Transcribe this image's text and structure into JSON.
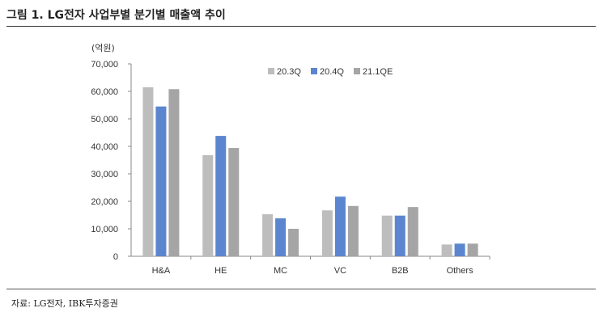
{
  "figure": {
    "title": "그림 1. LG전자 사업부별 분기별 매출액 추이",
    "source": "자료: LG전자, IBK투자증권"
  },
  "chart_data": {
    "type": "bar",
    "unit_label": "(억원)",
    "categories": [
      "H&A",
      "HE",
      "MC",
      "VC",
      "B2B",
      "Others"
    ],
    "series": [
      {
        "name": "20.3Q",
        "color": "#bdbdbd",
        "values": [
          61500,
          36800,
          15300,
          16700,
          14800,
          4300
        ]
      },
      {
        "name": "20.4Q",
        "color": "#5b86cf",
        "values": [
          54500,
          43800,
          13800,
          21700,
          14800,
          4600
        ]
      },
      {
        "name": "21.1QE",
        "color": "#a5a5a5",
        "values": [
          60800,
          39400,
          10000,
          18300,
          17900,
          4600
        ]
      }
    ],
    "ylim": [
      0,
      70000
    ],
    "yticks": [
      "0",
      "10,000",
      "20,000",
      "30,000",
      "40,000",
      "50,000",
      "60,000",
      "70,000"
    ],
    "legend_position": "top-right",
    "grid": false
  }
}
